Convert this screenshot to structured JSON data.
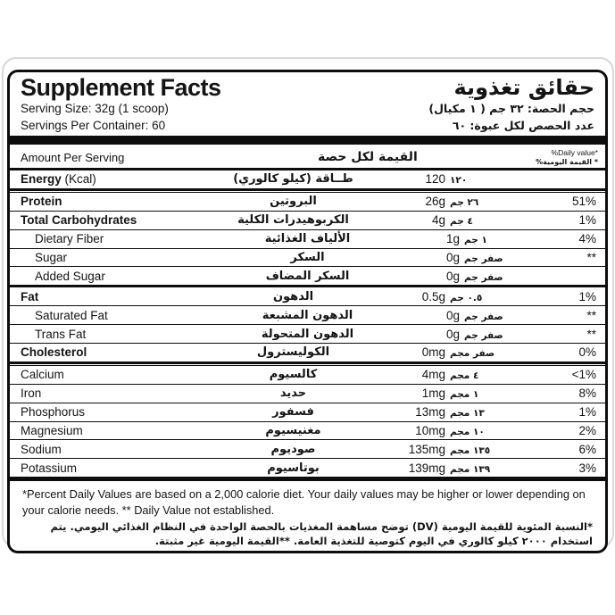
{
  "page": {
    "background": "#ffffff",
    "line_color": "#0d0d0d"
  },
  "header": {
    "title_en": "Supplement Facts",
    "title_ar": "حقائق تغذوية",
    "serving_size_en": "Serving Size: 32g (1 scoop)",
    "serving_size_ar": "حجم الحصة: ٣٢ جم ( ١ مكيال)",
    "servings_en": "Servings Per Container: 60",
    "servings_ar": "عدد الحصص لكل عبوة: ٦٠"
  },
  "table": {
    "header": {
      "amount_en": "Amount Per Serving",
      "amount_ar": "القيمة لكل حصة",
      "dv_en": "%Daily value*",
      "dv_ar": "%القيمة اليومية *"
    },
    "rows": [
      {
        "name_en": "Energy",
        "note_en": "(Kcal)",
        "name_ar": "طــاقة (كيلو كالوري)",
        "amount_en": "120",
        "amount_ar": "١٢٠",
        "dv": "",
        "style": "bold",
        "sep": "double"
      },
      {
        "name_en": "Protein",
        "name_ar": "البروتين",
        "amount_en": "26g",
        "amount_ar": "٢٦ جم",
        "dv": "51%",
        "style": "bold",
        "sep": "thin"
      },
      {
        "name_en": "Total Carbohydrates",
        "name_ar": "الكربوهيدرات الكلية",
        "amount_en": "4g",
        "amount_ar": "٤ جم",
        "dv": "1%",
        "style": "bold",
        "sep": "thin"
      },
      {
        "name_en": "Dietary Fiber",
        "name_ar": "الألياف الغذائية",
        "amount_en": "1g",
        "amount_ar": "١ جم",
        "dv": "4%",
        "style": "sub",
        "sep": "thin"
      },
      {
        "name_en": "Sugar",
        "name_ar": "السكر",
        "amount_en": "0g",
        "amount_ar": "صفر جم",
        "dv": "**",
        "style": "sub",
        "sep": "thin"
      },
      {
        "name_en": "Added Sugar",
        "name_ar": "السكر المضاف",
        "amount_en": "0g",
        "amount_ar": "صفر جم",
        "dv": "",
        "style": "sub",
        "sep": "thick"
      },
      {
        "name_en": "Fat",
        "name_ar": "الدهون",
        "amount_en": "0.5g",
        "amount_ar": "٠.٥ جم",
        "dv": "1%",
        "style": "bold",
        "sep": "thin"
      },
      {
        "name_en": "Saturated Fat",
        "name_ar": "الدهون المشبعة",
        "amount_en": "0g",
        "amount_ar": "صفر جم",
        "dv": "**",
        "style": "sub",
        "sep": "thin"
      },
      {
        "name_en": "Trans Fat",
        "name_ar": "الدهون المتحولة",
        "amount_en": "0g",
        "amount_ar": "صفر جم",
        "dv": "**",
        "style": "sub",
        "sep": "thin"
      },
      {
        "name_en": "Cholesterol",
        "name_ar": "الكوليسترول",
        "amount_en": "0mg",
        "amount_ar": "صفر مجم",
        "dv": "0%",
        "style": "bold",
        "sep": "double"
      },
      {
        "name_en": "Calcium",
        "name_ar": "كالسيوم",
        "amount_en": "4mg",
        "amount_ar": "٤ مجم",
        "dv": "<1%",
        "style": "plain",
        "sep": "thin"
      },
      {
        "name_en": "Iron",
        "name_ar": "حديد",
        "amount_en": "1mg",
        "amount_ar": "١ مجم",
        "dv": "8%",
        "style": "plain",
        "sep": "thin"
      },
      {
        "name_en": "Phosphorus",
        "name_ar": "فسفور",
        "amount_en": "13mg",
        "amount_ar": "١٣ مجم",
        "dv": "1%",
        "style": "plain",
        "sep": "thin"
      },
      {
        "name_en": "Magnesium",
        "name_ar": "مغنيسيوم",
        "amount_en": "10mg",
        "amount_ar": "١٠ مجم",
        "dv": "2%",
        "style": "plain",
        "sep": "thin"
      },
      {
        "name_en": "Sodium",
        "name_ar": "صوديوم",
        "amount_en": "135mg",
        "amount_ar": "١٣٥ مجم",
        "dv": "6%",
        "style": "plain",
        "sep": "thin"
      },
      {
        "name_en": "Potassium",
        "name_ar": "بوتاسيوم",
        "amount_en": "139mg",
        "amount_ar": "١٣٩ مجم",
        "dv": "3%",
        "style": "plain",
        "sep": "final"
      }
    ]
  },
  "footnotes": {
    "en": "*Percent Daily Values are based on a 2,000 calorie diet. Your daily values may be higher or lower depending on your calorie needs. ** Daily Value not established.",
    "ar": "*النسبة المئوية للقيمة اليومية (DV) توضح مساهمة المغذيات بالحصة الواحدة في النظام الغذائي اليومي. يتم استخدام ٢٠٠٠ كيلو كالوري في اليوم كتوصية للتغذية العامة. **القيمة اليومية غير مثبتة."
  }
}
